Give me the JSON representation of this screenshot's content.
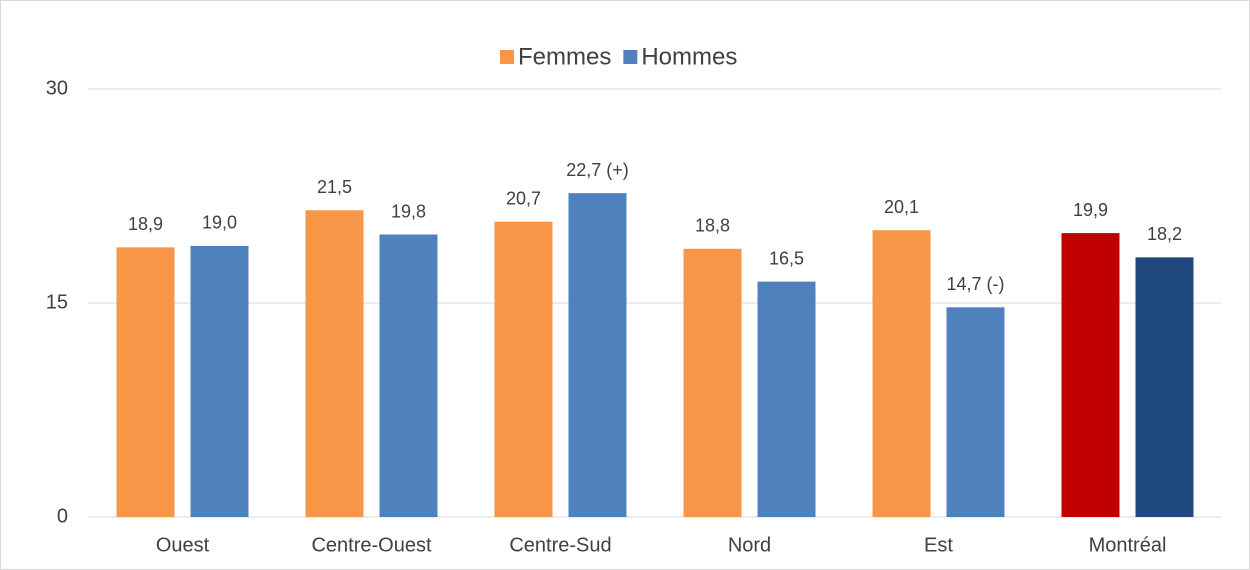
{
  "chart_data": {
    "type": "bar",
    "categories": [
      "Ouest",
      "Centre-Ouest",
      "Centre-Sud",
      "Nord",
      "Est",
      "Montréal"
    ],
    "series": [
      {
        "name": "Femmes",
        "color": "#f79646",
        "colors": [
          "#f79646",
          "#f79646",
          "#f79646",
          "#f79646",
          "#f79646",
          "#c00000"
        ],
        "values": [
          18.9,
          21.5,
          20.7,
          18.8,
          20.1,
          19.9
        ],
        "value_labels": [
          "18,9",
          "21,5",
          "20,7",
          "18,8",
          "20,1",
          "19,9"
        ]
      },
      {
        "name": "Hommes",
        "color": "#4f81bd",
        "colors": [
          "#4f81bd",
          "#4f81bd",
          "#4f81bd",
          "#4f81bd",
          "#4f81bd",
          "#1f497d"
        ],
        "values": [
          19.0,
          19.8,
          22.7,
          16.5,
          14.7,
          18.2
        ],
        "value_labels": [
          "19,0",
          "19,8",
          "22,7 (+)",
          "16,5",
          "14,7 (-)",
          "18,2"
        ]
      }
    ],
    "ylim": [
      0,
      30
    ],
    "yticks": [
      0,
      15,
      30
    ],
    "grid": true,
    "legend": "top"
  }
}
